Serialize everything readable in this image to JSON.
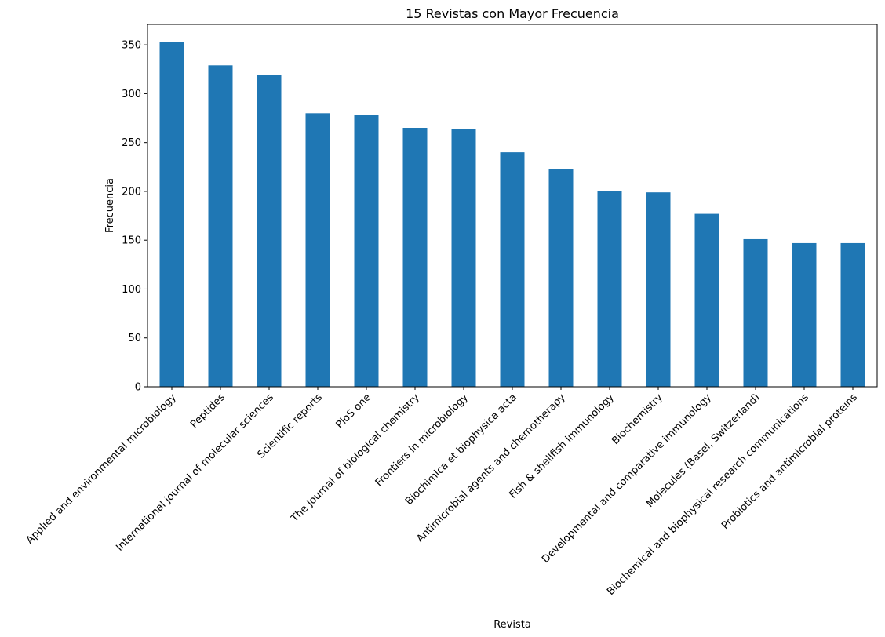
{
  "chart_data": {
    "type": "bar",
    "title": "15 Revistas con Mayor Frecuencia",
    "xlabel": "Revista",
    "ylabel": "Frecuencia",
    "ylim": [
      0,
      371
    ],
    "yticks": [
      0,
      50,
      100,
      150,
      200,
      250,
      300,
      350
    ],
    "grid": false,
    "bar_color": "#1f77b4",
    "categories": [
      "Applied and environmental microbiology",
      "Peptides",
      "International journal of molecular sciences",
      "Scientific reports",
      "PloS one",
      "The Journal of biological chemistry",
      "Frontiers in microbiology",
      "Biochimica et biophysica acta",
      "Antimicrobial agents and chemotherapy",
      "Fish & shellfish immunology",
      "Biochemistry",
      "Developmental and comparative immunology",
      "Molecules (Basel, Switzerland)",
      "Biochemical and biophysical research communications",
      "Probiotics and antimicrobial proteins"
    ],
    "values": [
      353,
      329,
      319,
      280,
      278,
      265,
      264,
      240,
      223,
      200,
      199,
      177,
      151,
      147,
      147
    ]
  }
}
